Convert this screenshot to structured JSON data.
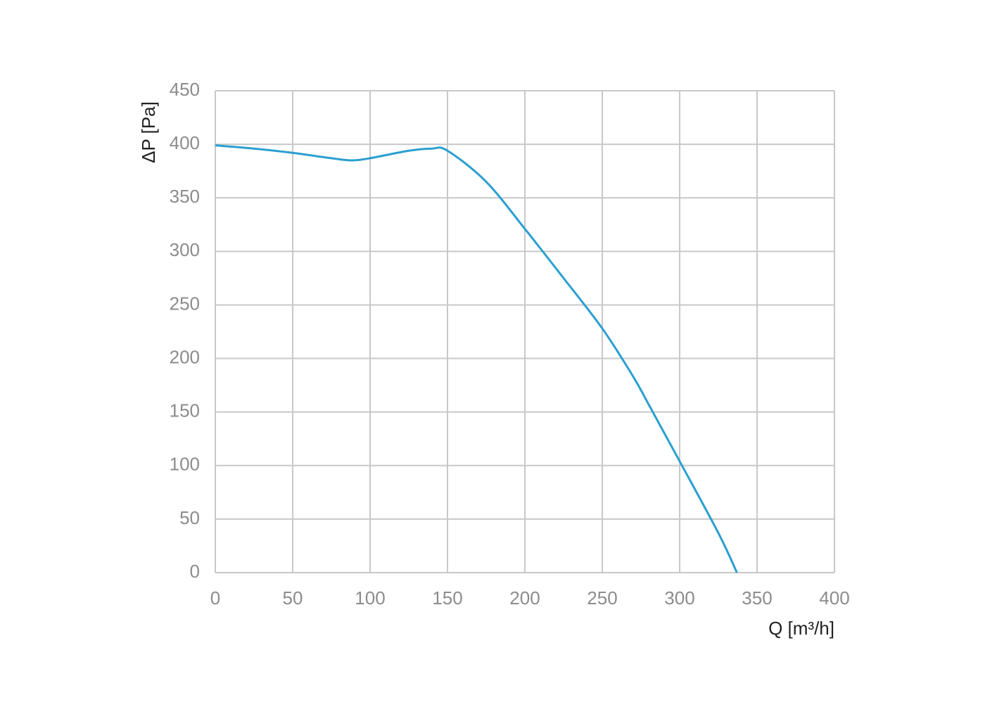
{
  "chart_data": {
    "type": "line",
    "x_label": "Q [m³/h]",
    "y_label": "ΔP [Pa]",
    "x": [
      0,
      25,
      50,
      75,
      88,
      100,
      125,
      140,
      150,
      175,
      200,
      225,
      250,
      270,
      280,
      300,
      325,
      337
    ],
    "series": [
      {
        "name": "ΔP",
        "color": "#2a9fd0",
        "values": [
          399,
          396,
          392,
          387,
          385,
          387,
          394,
          396,
          394,
          365,
          321,
          275,
          228,
          183,
          157,
          104,
          37,
          0
        ]
      }
    ],
    "xlim": [
      0,
      400
    ],
    "xticks": [
      0,
      50,
      100,
      150,
      200,
      250,
      300,
      350,
      400
    ],
    "ylim": [
      0,
      450
    ],
    "yticks": [
      0,
      50,
      100,
      150,
      200,
      250,
      300,
      350,
      400,
      450
    ],
    "grid": true
  }
}
